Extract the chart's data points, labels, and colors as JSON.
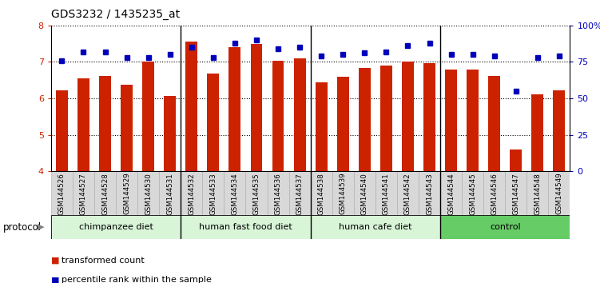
{
  "title": "GDS3232 / 1435235_at",
  "samples": [
    "GSM144526",
    "GSM144527",
    "GSM144528",
    "GSM144529",
    "GSM144530",
    "GSM144531",
    "GSM144532",
    "GSM144533",
    "GSM144534",
    "GSM144535",
    "GSM144536",
    "GSM144537",
    "GSM144538",
    "GSM144539",
    "GSM144540",
    "GSM144541",
    "GSM144542",
    "GSM144543",
    "GSM144544",
    "GSM144545",
    "GSM144546",
    "GSM144547",
    "GSM144548",
    "GSM144549"
  ],
  "transformed_count": [
    6.22,
    6.55,
    6.62,
    6.38,
    7.0,
    6.07,
    7.55,
    6.68,
    7.4,
    7.5,
    7.03,
    7.1,
    6.45,
    6.6,
    6.84,
    6.89,
    7.02,
    6.97,
    6.78,
    6.8,
    6.62,
    4.6,
    6.12,
    6.22
  ],
  "percentile_rank": [
    76,
    82,
    82,
    78,
    78,
    80,
    85,
    78,
    88,
    90,
    84,
    85,
    79,
    80,
    81,
    82,
    86,
    88,
    80,
    80,
    79,
    55,
    78,
    79
  ],
  "group_info": [
    {
      "label": "chimpanzee diet",
      "start": 0,
      "end": 6,
      "color": "#c8f5c8"
    },
    {
      "label": "human fast food diet",
      "start": 6,
      "end": 12,
      "color": "#c8f5c8"
    },
    {
      "label": "human cafe diet",
      "start": 12,
      "end": 18,
      "color": "#c8f5c8"
    },
    {
      "label": "control",
      "start": 18,
      "end": 24,
      "color": "#66cc66"
    }
  ],
  "group_boundary_colors": [
    "#c8f5c8",
    "#c8f5c8",
    "#c8f5c8",
    "#66cc66"
  ],
  "ylim_left": [
    4,
    8
  ],
  "ylim_right": [
    0,
    100
  ],
  "yticks_left": [
    4,
    5,
    6,
    7,
    8
  ],
  "yticks_right": [
    0,
    25,
    50,
    75,
    100
  ],
  "ytick_labels_right": [
    "0",
    "25",
    "50",
    "75",
    "100%"
  ],
  "bar_color": "#cc2200",
  "dot_color": "#0000bb",
  "bar_width": 0.55,
  "protocol_label": "protocol",
  "legend_items": [
    {
      "color": "#cc2200",
      "label": "transformed count"
    },
    {
      "color": "#0000bb",
      "label": "percentile rank within the sample"
    }
  ]
}
